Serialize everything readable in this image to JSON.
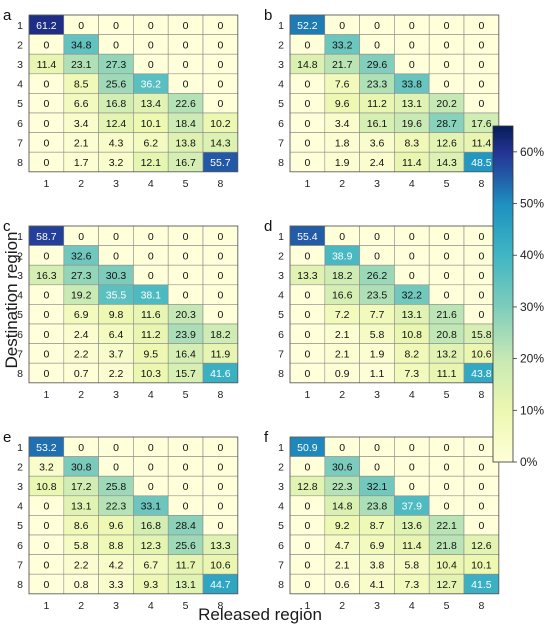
{
  "figure": {
    "ylabel": "Destination region",
    "xlabel": "Released region"
  },
  "colorbar": {
    "ticks": [
      0,
      10,
      20,
      30,
      40,
      50,
      60
    ],
    "tick_labels": [
      "0%",
      "10%",
      "20%",
      "30%",
      "40%",
      "50%",
      "60%"
    ],
    "range": [
      0,
      65
    ]
  },
  "chart_data": [
    {
      "type": "heatmap",
      "panel": "a",
      "x_categories": [
        "1",
        "2",
        "3",
        "4",
        "5",
        "8"
      ],
      "y_categories": [
        "1",
        "2",
        "3",
        "4",
        "5",
        "6",
        "7",
        "8"
      ],
      "values": [
        [
          61.2,
          0,
          0,
          0,
          0,
          0
        ],
        [
          0,
          34.8,
          0,
          0,
          0,
          0
        ],
        [
          11.4,
          23.1,
          27.3,
          0,
          0,
          0
        ],
        [
          0,
          8.5,
          25.6,
          36.2,
          0,
          0
        ],
        [
          0,
          6.6,
          16.8,
          13.4,
          22.6,
          0
        ],
        [
          0,
          3.4,
          12.4,
          10.1,
          18.4,
          10.2
        ],
        [
          0,
          2.1,
          4.3,
          6.2,
          13.8,
          14.3
        ],
        [
          0,
          1.7,
          3.2,
          12.1,
          16.7,
          55.7
        ]
      ]
    },
    {
      "type": "heatmap",
      "panel": "b",
      "x_categories": [
        "1",
        "2",
        "3",
        "4",
        "5",
        "8"
      ],
      "y_categories": [
        "1",
        "2",
        "3",
        "4",
        "5",
        "6",
        "7",
        "8"
      ],
      "values": [
        [
          52.2,
          0,
          0,
          0,
          0,
          0
        ],
        [
          0,
          33.2,
          0,
          0,
          0,
          0
        ],
        [
          14.8,
          21.7,
          29.6,
          0,
          0,
          0
        ],
        [
          0,
          7.6,
          23.3,
          33.8,
          0,
          0
        ],
        [
          0,
          9.6,
          11.2,
          13.1,
          20.2,
          0
        ],
        [
          0,
          3.4,
          16.1,
          19.6,
          28.7,
          17.6
        ],
        [
          0,
          1.8,
          3.6,
          8.3,
          12.6,
          11.4
        ],
        [
          0,
          1.9,
          2.4,
          11.4,
          14.3,
          48.5
        ]
      ]
    },
    {
      "type": "heatmap",
      "panel": "c",
      "x_categories": [
        "1",
        "2",
        "3",
        "4",
        "5",
        "8"
      ],
      "y_categories": [
        "1",
        "2",
        "3",
        "4",
        "5",
        "6",
        "7",
        "8"
      ],
      "values": [
        [
          58.7,
          0,
          0,
          0,
          0,
          0
        ],
        [
          0,
          32.6,
          0,
          0,
          0,
          0
        ],
        [
          16.3,
          27.3,
          30.3,
          0,
          0,
          0
        ],
        [
          0,
          19.2,
          35.5,
          38.1,
          0,
          0
        ],
        [
          0,
          6.9,
          9.8,
          11.6,
          20.3,
          0
        ],
        [
          0,
          2.4,
          6.4,
          11.2,
          23.9,
          18.2
        ],
        [
          0,
          2.2,
          3.7,
          9.5,
          16.4,
          11.9
        ],
        [
          0,
          0.7,
          2.2,
          10.3,
          15.7,
          41.6
        ]
      ]
    },
    {
      "type": "heatmap",
      "panel": "d",
      "x_categories": [
        "1",
        "2",
        "3",
        "4",
        "5",
        "8"
      ],
      "y_categories": [
        "1",
        "2",
        "3",
        "4",
        "5",
        "6",
        "7",
        "8"
      ],
      "values": [
        [
          55.4,
          0,
          0,
          0,
          0,
          0
        ],
        [
          0,
          38.9,
          0,
          0,
          0,
          0
        ],
        [
          13.3,
          18.2,
          26.2,
          0,
          0,
          0
        ],
        [
          0,
          16.6,
          23.5,
          32.2,
          0,
          0
        ],
        [
          0,
          7.2,
          7.7,
          13.1,
          21.6,
          0
        ],
        [
          0,
          2.1,
          5.8,
          10.8,
          20.8,
          15.8
        ],
        [
          0,
          2.1,
          1.9,
          8.2,
          13.2,
          10.6
        ],
        [
          0,
          0.9,
          1.1,
          7.3,
          11.1,
          43.8
        ]
      ]
    },
    {
      "type": "heatmap",
      "panel": "e",
      "x_categories": [
        "1",
        "2",
        "3",
        "4",
        "5",
        "8"
      ],
      "y_categories": [
        "1",
        "2",
        "3",
        "4",
        "5",
        "6",
        "7",
        "8"
      ],
      "values": [
        [
          53.2,
          0,
          0,
          0,
          0,
          0
        ],
        [
          3.2,
          30.8,
          0,
          0,
          0,
          0
        ],
        [
          10.8,
          17.2,
          25.8,
          0,
          0,
          0
        ],
        [
          0,
          13.1,
          22.3,
          33.1,
          0,
          0
        ],
        [
          0,
          8.6,
          9.6,
          16.8,
          28.4,
          0
        ],
        [
          0,
          5.8,
          8.8,
          12.3,
          25.6,
          13.3
        ],
        [
          0,
          2.2,
          4.2,
          6.7,
          11.7,
          10.6
        ],
        [
          0,
          0.8,
          3.3,
          9.3,
          13.1,
          44.7
        ]
      ]
    },
    {
      "type": "heatmap",
      "panel": "f",
      "x_categories": [
        "1",
        "2",
        "3",
        "4",
        "5",
        "8"
      ],
      "y_categories": [
        "1",
        "2",
        "3",
        "4",
        "5",
        "6",
        "7",
        "8"
      ],
      "values": [
        [
          50.9,
          0,
          0,
          0,
          0,
          0
        ],
        [
          0,
          30.6,
          0,
          0,
          0,
          0
        ],
        [
          12.8,
          22.3,
          32.1,
          0,
          0,
          0
        ],
        [
          0,
          14.8,
          23.8,
          37.9,
          0,
          0
        ],
        [
          0,
          9.2,
          8.7,
          13.6,
          22.1,
          0
        ],
        [
          0,
          4.7,
          6.9,
          11.4,
          21.8,
          12.6
        ],
        [
          0,
          2.1,
          3.8,
          5.8,
          10.4,
          10.1
        ],
        [
          0,
          0.6,
          4.1,
          7.3,
          12.7,
          41.5
        ]
      ]
    }
  ]
}
